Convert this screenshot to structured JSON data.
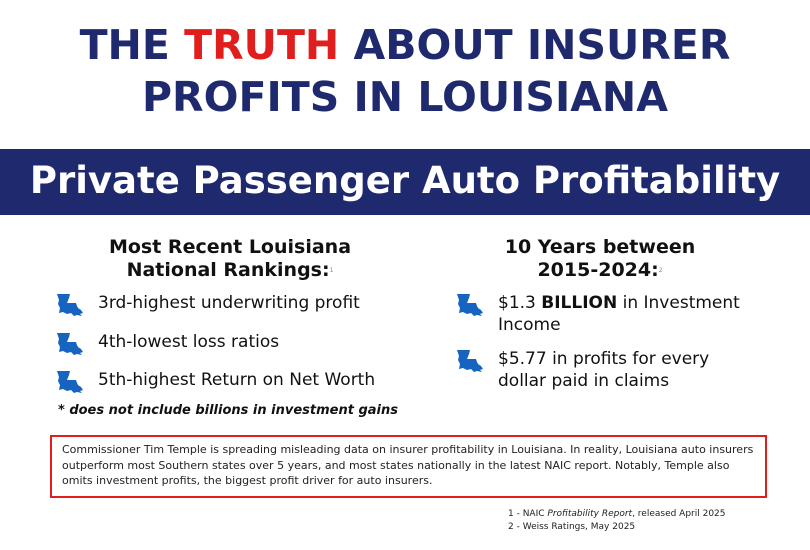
{
  "title": {
    "pre": "THE ",
    "highlight": "TRUTH",
    "post": " ABOUT INSURER",
    "line2": "PROFITS IN LOUISIANA"
  },
  "banner": "Private Passenger Auto Profitability",
  "left": {
    "heading1": "Most Recent Louisiana",
    "heading2": "National Rankings:",
    "sup": "1",
    "items": [
      "3rd-highest underwriting profit",
      "4th-lowest loss ratios",
      "5th-highest Return on Net Worth"
    ],
    "note": "* does not include billions in investment gains"
  },
  "right": {
    "heading1": "10 Years between",
    "heading2": "2015-2024:",
    "sup": "2",
    "item1_pre": "$1.3 ",
    "item1_bold": "BILLION",
    "item1_post": " in Investment Income",
    "item2": "$5.77 in profits for every dollar paid in claims"
  },
  "callout": "Commissioner Tim Temple is spreading misleading data on insurer profitability in Louisiana. In reality, Louisiana auto insurers outperform most Southern states over 5 years, and most states nationally in the latest NAIC report. Notably, Temple also omits investment profits, the biggest profit driver for auto insurers.",
  "footnotes": [
    {
      "pre": "1 - NAIC  ",
      "italic": "Profitability Report",
      "post": ", released April 2025"
    },
    {
      "pre": "2 - Weiss Ratings, May 2025"
    }
  ],
  "colors": {
    "navy": "#1f2a6e",
    "red": "#e01e1e",
    "state": "#1565c0"
  }
}
